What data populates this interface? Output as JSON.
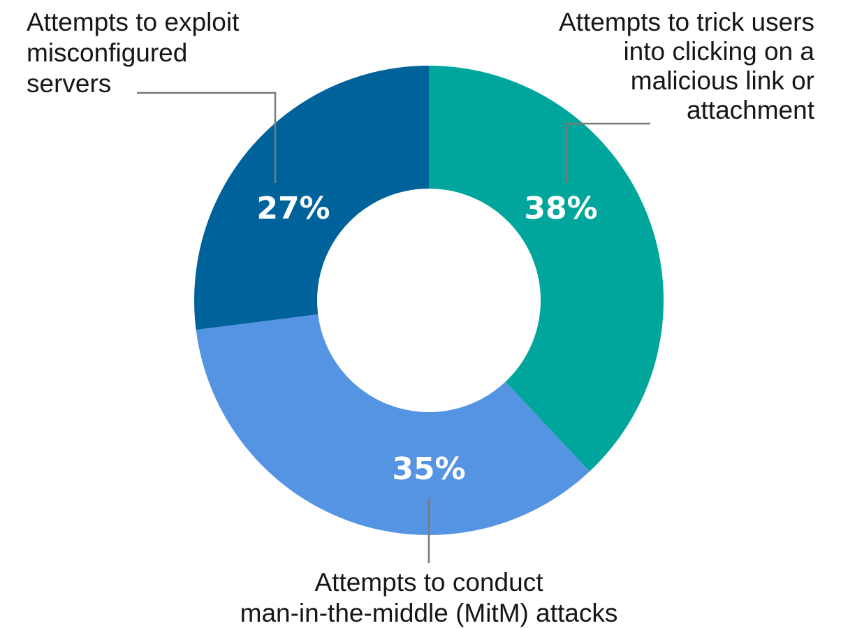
{
  "chart_data": {
    "type": "pie",
    "variant": "donut",
    "categories": [
      "Attempts to trick users into clicking on a malicious link or attachment",
      "Attempts to conduct man-in-the-middle (MitM) attacks",
      "Attempts to exploit misconfigured servers"
    ],
    "values": [
      38,
      35,
      27
    ],
    "value_labels": [
      "38%",
      "35%",
      "27%"
    ],
    "label_lines": [
      [
        "Attempts to trick users",
        "into clicking on a",
        "malicious link or",
        "attachment"
      ],
      [
        "Attempts to conduct",
        "man-in-the-middle (MitM) attacks"
      ],
      [
        "Attempts to exploit",
        "misconfigured",
        "servers"
      ]
    ],
    "colors": [
      "#00a69c",
      "#5594e3",
      "#00629a"
    ],
    "start": "top",
    "direction": "clockwise",
    "legend": "none"
  }
}
